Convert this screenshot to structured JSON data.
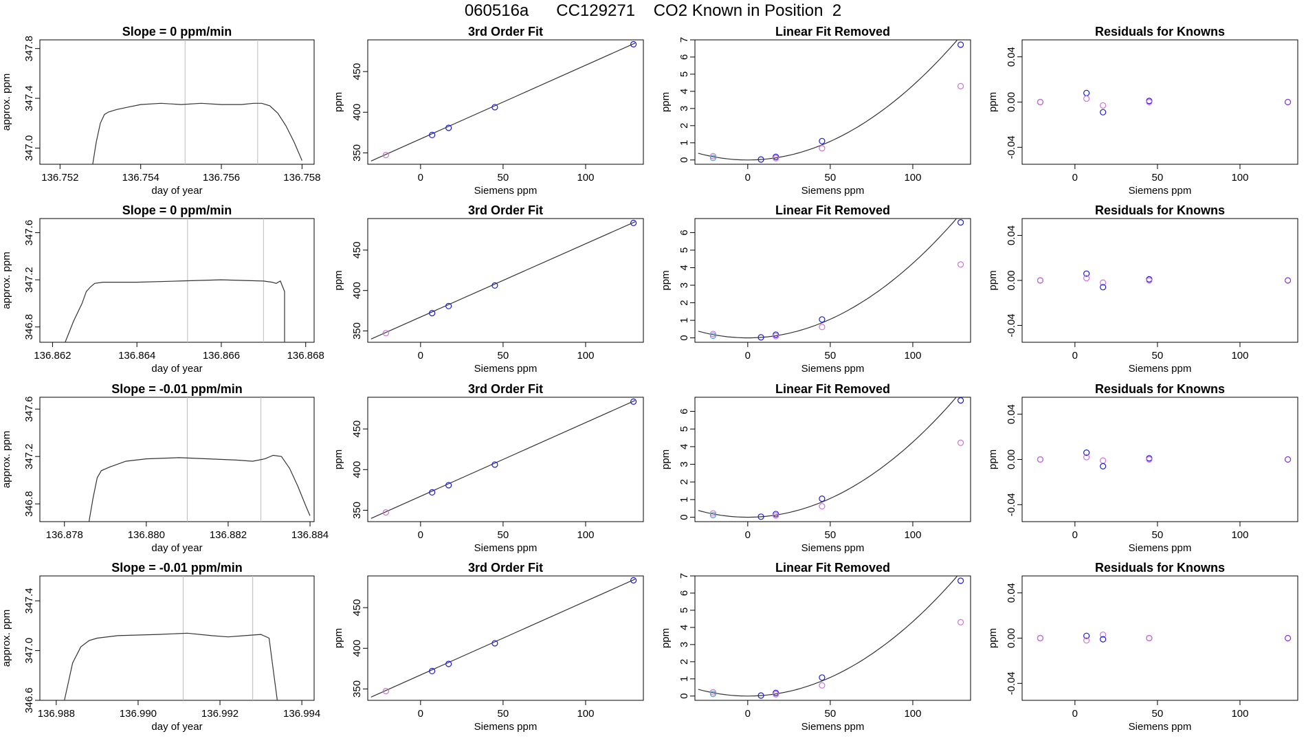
{
  "page": {
    "title": "060516a      CC129271    CO2 Known in Position  2"
  },
  "colors": {
    "line": "#333333",
    "axis": "#000000",
    "vline": "#bbbbbb",
    "blue": "#1a1ad6",
    "magenta": "#d070d8",
    "purple": "#8030d8",
    "lightblue": "#40a8e8",
    "redmark": "#e06060"
  },
  "axis_labels": {
    "day_of_year": "day of year",
    "approx_ppm": "approx. ppm",
    "siemens_ppm": "Siemens ppm",
    "ppm": "ppm"
  },
  "chart_data": [
    {
      "type": "line",
      "row": 1,
      "title": "Slope =  0  ppm/min",
      "xlabel": "day of year",
      "ylabel": "approx. ppm",
      "xlim": [
        136.7515,
        136.7583
      ],
      "ylim": [
        346.87,
        347.87
      ],
      "xticks": [
        "136.752",
        "136.754",
        "136.756",
        "136.758"
      ],
      "yticks": [
        "347.0",
        "347.4",
        "347.8"
      ],
      "vlines": [
        136.7551,
        136.7569
      ],
      "trace": [
        [
          136.7528,
          346.85
        ],
        [
          136.7529,
          347.05
        ],
        [
          136.753,
          347.2
        ],
        [
          136.7531,
          347.27
        ],
        [
          136.7532,
          347.29
        ],
        [
          136.7534,
          347.31
        ],
        [
          136.7537,
          347.33
        ],
        [
          136.754,
          347.35
        ],
        [
          136.7545,
          347.36
        ],
        [
          136.755,
          347.35
        ],
        [
          136.7555,
          347.36
        ],
        [
          136.756,
          347.35
        ],
        [
          136.7565,
          347.35
        ],
        [
          136.7568,
          347.36
        ],
        [
          136.757,
          347.36
        ],
        [
          136.7572,
          347.34
        ],
        [
          136.7574,
          347.28
        ],
        [
          136.7576,
          347.18
        ],
        [
          136.7578,
          347.05
        ],
        [
          136.758,
          346.9
        ]
      ]
    },
    {
      "type": "line",
      "row": 2,
      "title": "Slope =  0  ppm/min",
      "xlabel": "day of year",
      "ylabel": "approx. ppm",
      "xlim": [
        136.8617,
        136.8682
      ],
      "ylim": [
        346.67,
        347.72
      ],
      "xticks": [
        "136.862",
        "136.864",
        "136.866",
        "136.868"
      ],
      "yticks": [
        "346.8",
        "347.2",
        "347.6"
      ],
      "vlines": [
        136.8652,
        136.867
      ],
      "trace": [
        [
          136.8623,
          346.67
        ],
        [
          136.8625,
          346.85
        ],
        [
          136.8627,
          347.0
        ],
        [
          136.8628,
          347.1
        ],
        [
          136.8629,
          347.14
        ],
        [
          136.863,
          347.17
        ],
        [
          136.8632,
          347.18
        ],
        [
          136.864,
          347.18
        ],
        [
          136.865,
          347.19
        ],
        [
          136.866,
          347.2
        ],
        [
          136.867,
          347.19
        ],
        [
          136.8672,
          347.18
        ],
        [
          136.8673,
          347.17
        ],
        [
          136.8674,
          347.19
        ],
        [
          136.8675,
          347.1
        ],
        [
          136.8675,
          346.9
        ],
        [
          136.8675,
          346.67
        ]
      ]
    },
    {
      "type": "line",
      "row": 3,
      "title": "Slope =  -0.01  ppm/min",
      "xlabel": "day of year",
      "ylabel": "approx. ppm",
      "xlim": [
        136.8774,
        136.8841
      ],
      "ylim": [
        346.65,
        347.7
      ],
      "xticks": [
        "136.878",
        "136.880",
        "136.882",
        "136.884"
      ],
      "yticks": [
        "346.8",
        "347.2",
        "347.6"
      ],
      "vlines": [
        136.881,
        136.8828
      ],
      "trace": [
        [
          136.8786,
          346.65
        ],
        [
          136.8787,
          346.85
        ],
        [
          136.8788,
          347.02
        ],
        [
          136.8789,
          347.08
        ],
        [
          136.8791,
          347.11
        ],
        [
          136.8795,
          347.16
        ],
        [
          136.88,
          347.18
        ],
        [
          136.8808,
          347.19
        ],
        [
          136.8815,
          347.18
        ],
        [
          136.8822,
          347.17
        ],
        [
          136.8826,
          347.16
        ],
        [
          136.8829,
          347.18
        ],
        [
          136.8831,
          347.21
        ],
        [
          136.8833,
          347.2
        ],
        [
          136.8835,
          347.1
        ],
        [
          136.8837,
          346.95
        ],
        [
          136.8839,
          346.78
        ],
        [
          136.884,
          346.7
        ]
      ]
    },
    {
      "type": "line",
      "row": 4,
      "title": "Slope =  -0.01  ppm/min",
      "xlabel": "day of year",
      "ylabel": "approx. ppm",
      "xlim": [
        136.9876,
        136.9943
      ],
      "ylim": [
        346.6,
        347.6
      ],
      "xticks": [
        "136.988",
        "136.990",
        "136.992",
        "136.994"
      ],
      "yticks": [
        "346.6",
        "347.0",
        "347.4"
      ],
      "vlines": [
        136.9911,
        136.9928
      ],
      "trace": [
        [
          136.9882,
          346.6
        ],
        [
          136.9883,
          346.75
        ],
        [
          136.9884,
          346.9
        ],
        [
          136.9886,
          347.03
        ],
        [
          136.9888,
          347.08
        ],
        [
          136.989,
          347.1
        ],
        [
          136.9895,
          347.12
        ],
        [
          136.9905,
          347.13
        ],
        [
          136.9912,
          347.14
        ],
        [
          136.9918,
          347.12
        ],
        [
          136.9922,
          347.11
        ],
        [
          136.9926,
          347.12
        ],
        [
          136.993,
          347.13
        ],
        [
          136.9932,
          347.1
        ],
        [
          136.9933,
          346.85
        ],
        [
          136.9934,
          346.6
        ]
      ]
    },
    {
      "type": "scatter",
      "row": 1,
      "title": "3rd Order Fit",
      "xlabel": "Siemens ppm",
      "ylabel": "ppm",
      "xlim": [
        -32,
        135
      ],
      "ylim": [
        336,
        489
      ],
      "xticks": [
        0,
        50,
        100
      ],
      "yticks": [
        350,
        400,
        450
      ],
      "fit_line": [
        [
          -30,
          340
        ],
        [
          130,
          485
        ]
      ],
      "points": [
        [
          -21,
          347.3,
          "magenta"
        ],
        [
          7,
          372.0,
          "blue"
        ],
        [
          17,
          380.8,
          "blue"
        ],
        [
          45,
          406.2,
          "blue"
        ],
        [
          129,
          483.6,
          "blue"
        ]
      ]
    },
    {
      "type": "scatter",
      "row": 2,
      "title": "3rd Order Fit",
      "xlabel": "Siemens ppm",
      "ylabel": "ppm",
      "xlim": [
        -32,
        135
      ],
      "ylim": [
        336,
        489
      ],
      "xticks": [
        0,
        50,
        100
      ],
      "yticks": [
        350,
        400,
        450
      ],
      "fit_line": [
        [
          -30,
          340
        ],
        [
          130,
          485
        ]
      ],
      "points": [
        [
          -21,
          347.3,
          "magenta"
        ],
        [
          7,
          372.0,
          "blue"
        ],
        [
          17,
          380.8,
          "blue"
        ],
        [
          45,
          406.2,
          "blue"
        ],
        [
          129,
          483.6,
          "blue"
        ]
      ]
    },
    {
      "type": "scatter",
      "row": 3,
      "title": "3rd Order Fit",
      "xlabel": "Siemens ppm",
      "ylabel": "ppm",
      "xlim": [
        -32,
        135
      ],
      "ylim": [
        336,
        489
      ],
      "xticks": [
        0,
        50,
        100
      ],
      "yticks": [
        350,
        400,
        450
      ],
      "fit_line": [
        [
          -30,
          340
        ],
        [
          130,
          485
        ]
      ],
      "points": [
        [
          -21,
          347.3,
          "magenta"
        ],
        [
          7,
          372.0,
          "blue"
        ],
        [
          17,
          380.8,
          "blue"
        ],
        [
          45,
          406.2,
          "blue"
        ],
        [
          129,
          483.6,
          "blue"
        ]
      ]
    },
    {
      "type": "scatter",
      "row": 4,
      "title": "3rd Order Fit",
      "xlabel": "Siemens ppm",
      "ylabel": "ppm",
      "xlim": [
        -32,
        135
      ],
      "ylim": [
        336,
        489
      ],
      "xticks": [
        0,
        50,
        100
      ],
      "yticks": [
        350,
        400,
        450
      ],
      "fit_line": [
        [
          -30,
          340
        ],
        [
          130,
          485
        ]
      ],
      "points": [
        [
          -21,
          347.3,
          "magenta"
        ],
        [
          7,
          372.0,
          "blue"
        ],
        [
          17,
          380.8,
          "blue"
        ],
        [
          45,
          406.2,
          "blue"
        ],
        [
          129,
          483.6,
          "blue"
        ]
      ]
    },
    {
      "type": "scatter",
      "row": 1,
      "title": "Linear Fit Removed",
      "xlabel": "Siemens ppm",
      "ylabel": "ppm",
      "xlim": [
        -32,
        135
      ],
      "ylim": [
        -0.25,
        7.0
      ],
      "xticks": [
        0,
        50,
        100
      ],
      "yticks": [
        0,
        1,
        2,
        3,
        4,
        5,
        6,
        7
      ],
      "curve_k": 0.000434,
      "curve_x0": 0,
      "points": [
        [
          -21,
          0.22,
          "magenta"
        ],
        [
          -21,
          0.12,
          "lightblue"
        ],
        [
          8,
          0.03,
          "blue"
        ],
        [
          17,
          0.18,
          "blue"
        ],
        [
          17,
          0.1,
          "magenta"
        ],
        [
          45,
          1.1,
          "blue"
        ],
        [
          45,
          0.68,
          "magenta"
        ],
        [
          129,
          6.72,
          "blue"
        ],
        [
          129,
          4.3,
          "magenta"
        ]
      ]
    },
    {
      "type": "scatter",
      "row": 2,
      "title": "Linear Fit Removed",
      "xlabel": "Siemens ppm",
      "ylabel": "ppm",
      "xlim": [
        -32,
        135
      ],
      "ylim": [
        -0.25,
        6.8
      ],
      "xticks": [
        0,
        50,
        100
      ],
      "yticks": [
        0,
        1,
        2,
        3,
        4,
        5,
        6
      ],
      "curve_k": 0.000425,
      "curve_x0": 0,
      "points": [
        [
          -21,
          0.22,
          "magenta"
        ],
        [
          -21,
          0.12,
          "lightblue"
        ],
        [
          8,
          0.03,
          "blue"
        ],
        [
          17,
          0.18,
          "blue"
        ],
        [
          17,
          0.1,
          "magenta"
        ],
        [
          45,
          1.05,
          "blue"
        ],
        [
          45,
          0.62,
          "magenta"
        ],
        [
          129,
          6.58,
          "blue"
        ],
        [
          129,
          4.18,
          "magenta"
        ]
      ]
    },
    {
      "type": "scatter",
      "row": 3,
      "title": "Linear Fit Removed",
      "xlabel": "Siemens ppm",
      "ylabel": "ppm",
      "xlim": [
        -32,
        135
      ],
      "ylim": [
        -0.25,
        6.8
      ],
      "xticks": [
        0,
        50,
        100
      ],
      "yticks": [
        0,
        1,
        2,
        3,
        4,
        5,
        6
      ],
      "curve_k": 0.000426,
      "curve_x0": 0,
      "points": [
        [
          -21,
          0.22,
          "magenta"
        ],
        [
          -21,
          0.12,
          "lightblue"
        ],
        [
          8,
          0.03,
          "blue"
        ],
        [
          17,
          0.18,
          "blue"
        ],
        [
          17,
          0.1,
          "magenta"
        ],
        [
          45,
          1.05,
          "blue"
        ],
        [
          45,
          0.62,
          "magenta"
        ],
        [
          129,
          6.62,
          "blue"
        ],
        [
          129,
          4.22,
          "magenta"
        ]
      ]
    },
    {
      "type": "scatter",
      "row": 4,
      "title": "Linear Fit Removed",
      "xlabel": "Siemens ppm",
      "ylabel": "ppm",
      "xlim": [
        -32,
        135
      ],
      "ylim": [
        -0.25,
        7.0
      ],
      "xticks": [
        0,
        50,
        100
      ],
      "yticks": [
        0,
        1,
        2,
        3,
        4,
        5,
        6,
        7
      ],
      "curve_k": 0.000434,
      "curve_x0": 0,
      "points": [
        [
          -21,
          0.22,
          "magenta"
        ],
        [
          -21,
          0.12,
          "lightblue"
        ],
        [
          8,
          0.03,
          "blue"
        ],
        [
          17,
          0.18,
          "blue"
        ],
        [
          17,
          0.1,
          "magenta"
        ],
        [
          45,
          1.08,
          "blue"
        ],
        [
          45,
          0.62,
          "magenta"
        ],
        [
          129,
          6.72,
          "blue"
        ],
        [
          129,
          4.3,
          "magenta"
        ]
      ]
    },
    {
      "type": "scatter",
      "row": 1,
      "title": "Residuals for Knowns",
      "xlabel": "Siemens ppm",
      "ylabel": "ppm",
      "xlim": [
        -32,
        135
      ],
      "ylim": [
        -0.055,
        0.055
      ],
      "xticks": [
        0,
        50,
        100
      ],
      "yticks": [
        "-0.04",
        "0.00",
        "0.04"
      ],
      "points": [
        [
          -21,
          0.0,
          "blue"
        ],
        [
          -21,
          0.0,
          "magenta"
        ],
        [
          7,
          0.008,
          "blue"
        ],
        [
          7,
          0.003,
          "magenta"
        ],
        [
          17,
          -0.003,
          "magenta"
        ],
        [
          17,
          -0.009,
          "blue"
        ],
        [
          45,
          0.001,
          "blue"
        ],
        [
          45,
          0.0,
          "magenta"
        ],
        [
          129,
          0.0,
          "purple"
        ]
      ]
    },
    {
      "type": "scatter",
      "row": 2,
      "title": "Residuals for Knowns",
      "xlabel": "Siemens ppm",
      "ylabel": "ppm",
      "xlim": [
        -32,
        135
      ],
      "ylim": [
        -0.055,
        0.055
      ],
      "xticks": [
        0,
        50,
        100
      ],
      "yticks": [
        "-0.04",
        "0.00",
        "0.04"
      ],
      "points": [
        [
          -21,
          0.0,
          "blue"
        ],
        [
          -21,
          0.0,
          "magenta"
        ],
        [
          7,
          0.006,
          "blue"
        ],
        [
          7,
          0.002,
          "magenta"
        ],
        [
          17,
          -0.002,
          "magenta"
        ],
        [
          17,
          -0.006,
          "blue"
        ],
        [
          45,
          0.001,
          "blue"
        ],
        [
          45,
          0.0,
          "magenta"
        ],
        [
          129,
          0.0,
          "purple"
        ]
      ]
    },
    {
      "type": "scatter",
      "row": 3,
      "title": "Residuals for Knowns",
      "xlabel": "Siemens ppm",
      "ylabel": "ppm",
      "xlim": [
        -32,
        135
      ],
      "ylim": [
        -0.055,
        0.055
      ],
      "xticks": [
        0,
        50,
        100
      ],
      "yticks": [
        "-0.04",
        "0.00",
        "0.04"
      ],
      "points": [
        [
          -21,
          0.0,
          "blue"
        ],
        [
          -21,
          0.0,
          "magenta"
        ],
        [
          7,
          0.006,
          "blue"
        ],
        [
          7,
          0.002,
          "magenta"
        ],
        [
          17,
          -0.001,
          "magenta"
        ],
        [
          17,
          -0.006,
          "blue"
        ],
        [
          45,
          0.001,
          "blue"
        ],
        [
          45,
          0.0,
          "magenta"
        ],
        [
          129,
          0.0,
          "purple"
        ]
      ]
    },
    {
      "type": "scatter",
      "row": 4,
      "title": "Residuals for Knowns",
      "xlabel": "Siemens ppm",
      "ylabel": "ppm",
      "xlim": [
        -32,
        135
      ],
      "ylim": [
        -0.055,
        0.055
      ],
      "xticks": [
        0,
        50,
        100
      ],
      "yticks": [
        "-0.04",
        "0.00",
        "0.04"
      ],
      "points": [
        [
          -21,
          0.0,
          "blue"
        ],
        [
          -21,
          0.0,
          "magenta"
        ],
        [
          7,
          0.002,
          "blue"
        ],
        [
          7,
          -0.002,
          "magenta"
        ],
        [
          17,
          0.003,
          "magenta"
        ],
        [
          17,
          -0.001,
          "blue"
        ],
        [
          45,
          0.0,
          "blue"
        ],
        [
          45,
          0.0,
          "magenta"
        ],
        [
          129,
          0.0,
          "purple"
        ]
      ]
    }
  ]
}
